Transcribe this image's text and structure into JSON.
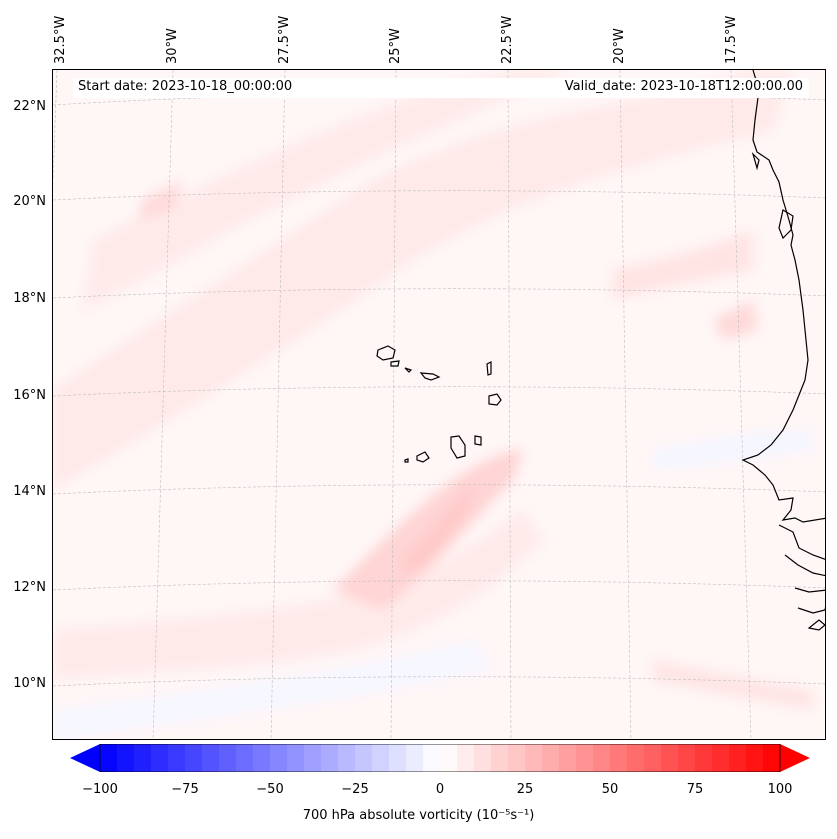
{
  "map": {
    "start_date": "Start date: 2023-10-18_00:00:00",
    "valid_date": "Valid_date: 2023-10-18T12:00:00.00",
    "lon_labels": [
      "32.5°W",
      "30°W",
      "27.5°W",
      "25°W",
      "22.5°W",
      "20°W",
      "17.5°W"
    ],
    "lat_labels": [
      "22°N",
      "20°N",
      "18°N",
      "16°N",
      "14°N",
      "12°N",
      "10°N"
    ],
    "extent": {
      "lon_min": -32.5,
      "lon_max": -16.0,
      "lat_min": 8.9,
      "lat_max": 22.8
    },
    "field": "700 hPa absolute vorticity",
    "colors": {
      "coast": "#000000",
      "grid": "#b0b0b0",
      "positive": "#ff0000",
      "negative": "#0000ff"
    }
  },
  "colorbar": {
    "label": "700 hPa absolute vorticity (10⁻⁵s⁻¹)",
    "ticks": [
      "−100",
      "−75",
      "−50",
      "−25",
      "0",
      "25",
      "50",
      "75",
      "100"
    ],
    "min": -100,
    "max": 100,
    "step": 5,
    "low_color": "#0000ff",
    "mid_color": "#ffffff",
    "high_color": "#ff0000"
  }
}
